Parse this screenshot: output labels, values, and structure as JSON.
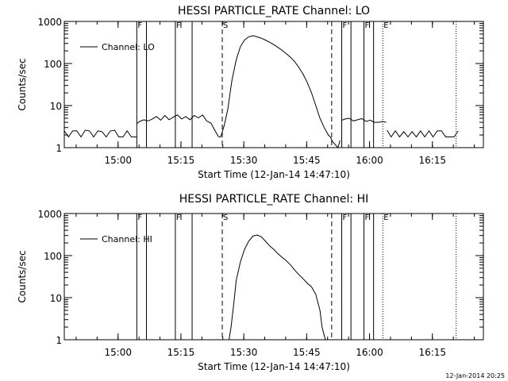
{
  "footer_text": "12-Jan-2014 20:25",
  "chart_data": [
    {
      "type": "line",
      "title": "HESSI PARTICLE_RATE Channel: LO",
      "xlabel": "Start Time (12-Jan-14 14:47:10)",
      "ylabel": "Counts/sec",
      "x_unit": "minutes since start",
      "xlim": [
        0,
        100
      ],
      "ylim": [
        1,
        1000
      ],
      "y_scale": "log",
      "x_ticks": [
        {
          "t": 12.83,
          "label": "15:00"
        },
        {
          "t": 27.83,
          "label": "15:15"
        },
        {
          "t": 42.83,
          "label": "15:30"
        },
        {
          "t": 57.83,
          "label": "15:45"
        },
        {
          "t": 72.83,
          "label": "16:00"
        },
        {
          "t": 87.83,
          "label": "16:15"
        }
      ],
      "y_ticks": [
        {
          "v": 1,
          "label": "1"
        },
        {
          "v": 10,
          "label": "10"
        },
        {
          "v": 100,
          "label": "100"
        },
        {
          "v": 1000,
          "label": "1000"
        }
      ],
      "legend": {
        "label": "Channel: LO",
        "placement": "top-left"
      },
      "markers": [
        {
          "t": 17.3,
          "style": "solid",
          "label": "F"
        },
        {
          "t": 19.6,
          "style": "solid",
          "label": ""
        },
        {
          "t": 26.5,
          "style": "solid",
          "label": "F"
        },
        {
          "t": 30.5,
          "style": "solid",
          "label": ""
        },
        {
          "t": 37.7,
          "style": "dashed",
          "label": "S"
        },
        {
          "t": 63.8,
          "style": "dashed",
          "label": ""
        },
        {
          "t": 66.2,
          "style": "solid",
          "label": "F"
        },
        {
          "t": 68.4,
          "style": "solid",
          "label": ""
        },
        {
          "t": 71.5,
          "style": "solid",
          "label": "F"
        },
        {
          "t": 73.8,
          "style": "solid",
          "label": ""
        },
        {
          "t": 76.0,
          "style": "dotted",
          "label": "E"
        },
        {
          "t": 93.5,
          "style": "dotted",
          "label": ""
        }
      ],
      "segments": [
        {
          "x": [
            0,
            1,
            2,
            3,
            4,
            5,
            6,
            7,
            8,
            9,
            10,
            11,
            12,
            13,
            14,
            15,
            16,
            17.2
          ],
          "y": [
            2.5,
            1.8,
            2.5,
            2.5,
            1.8,
            2.6,
            2.5,
            1.8,
            2.5,
            2.4,
            1.8,
            2.5,
            2.6,
            1.8,
            1.8,
            2.5,
            1.8,
            1.8
          ]
        },
        {
          "x": [
            17.4,
            18,
            19,
            20,
            21,
            22,
            23,
            24,
            25,
            26,
            27,
            28,
            29,
            30,
            31,
            32,
            33,
            34,
            35,
            36,
            36.8
          ],
          "y": [
            3.8,
            4.2,
            4.6,
            4.3,
            4.8,
            5.5,
            4.5,
            5.8,
            4.6,
            5.3,
            6.0,
            4.8,
            5.5,
            4.6,
            5.8,
            5.1,
            6.0,
            4.3,
            3.8,
            2.5,
            1.8
          ]
        },
        {
          "x": [
            36.9,
            37.3,
            37.6
          ],
          "y": [
            1.8,
            1.8,
            2.2
          ]
        },
        {
          "x": [
            37.6,
            38.2,
            39,
            40,
            41,
            42,
            43,
            44,
            45,
            46,
            47,
            48,
            49,
            50,
            51,
            52,
            53,
            54,
            55,
            56,
            57,
            58,
            59,
            60,
            61,
            62,
            63,
            63.5,
            64,
            65.3
          ],
          "y": [
            2.2,
            3.5,
            8,
            40,
            120,
            250,
            360,
            430,
            460,
            430,
            400,
            360,
            320,
            280,
            240,
            205,
            170,
            140,
            110,
            80,
            55,
            35,
            20,
            10,
            5,
            3,
            2,
            1.8,
            1.4,
            1.0
          ]
        },
        {
          "x": [
            65.3,
            65.8
          ],
          "y": [
            1.0,
            1.5
          ]
        },
        {
          "x": [
            66.3,
            67,
            68,
            69,
            70,
            71,
            72,
            73,
            74,
            75,
            76,
            76.8
          ],
          "y": [
            4.5,
            4.8,
            5.0,
            4.3,
            4.6,
            4.9,
            4.2,
            4.5,
            4.0,
            4.0,
            4.2,
            4.0
          ]
        },
        {
          "x": [
            77,
            78,
            79,
            80,
            81,
            82,
            83,
            84,
            85,
            86,
            87,
            88,
            89,
            90,
            91,
            92,
            93,
            94
          ],
          "y": [
            2.6,
            1.8,
            2.5,
            1.8,
            2.4,
            1.8,
            2.4,
            1.8,
            2.5,
            1.8,
            2.5,
            1.8,
            2.5,
            2.5,
            1.8,
            1.8,
            1.8,
            2.5
          ]
        }
      ]
    },
    {
      "type": "line",
      "title": "HESSI PARTICLE_RATE Channel: HI",
      "xlabel": "Start Time (12-Jan-14 14:47:10)",
      "ylabel": "Counts/sec",
      "x_unit": "minutes since start",
      "xlim": [
        0,
        100
      ],
      "ylim": [
        1,
        1000
      ],
      "y_scale": "log",
      "x_ticks": [
        {
          "t": 12.83,
          "label": "15:00"
        },
        {
          "t": 27.83,
          "label": "15:15"
        },
        {
          "t": 42.83,
          "label": "15:30"
        },
        {
          "t": 57.83,
          "label": "15:45"
        },
        {
          "t": 72.83,
          "label": "16:00"
        },
        {
          "t": 87.83,
          "label": "16:15"
        }
      ],
      "y_ticks": [
        {
          "v": 1,
          "label": "1"
        },
        {
          "v": 10,
          "label": "10"
        },
        {
          "v": 100,
          "label": "100"
        },
        {
          "v": 1000,
          "label": "1000"
        }
      ],
      "legend": {
        "label": "Channel: HI",
        "placement": "top-left"
      },
      "markers": [
        {
          "t": 17.3,
          "style": "solid",
          "label": "F"
        },
        {
          "t": 19.6,
          "style": "solid",
          "label": ""
        },
        {
          "t": 26.5,
          "style": "solid",
          "label": "F"
        },
        {
          "t": 30.5,
          "style": "solid",
          "label": ""
        },
        {
          "t": 37.7,
          "style": "dashed",
          "label": "S"
        },
        {
          "t": 63.8,
          "style": "dashed",
          "label": ""
        },
        {
          "t": 66.2,
          "style": "solid",
          "label": "F"
        },
        {
          "t": 68.4,
          "style": "solid",
          "label": ""
        },
        {
          "t": 71.5,
          "style": "solid",
          "label": "F"
        },
        {
          "t": 73.8,
          "style": "solid",
          "label": ""
        },
        {
          "t": 76.0,
          "style": "dotted",
          "label": "E"
        },
        {
          "t": 93.5,
          "style": "dotted",
          "label": ""
        }
      ],
      "segments": [
        {
          "x": [
            39.3,
            39.8,
            40.5,
            41,
            42,
            43,
            44,
            45,
            46,
            47,
            48,
            49,
            50,
            51,
            52,
            53,
            54,
            55,
            56,
            57,
            58,
            59,
            60,
            61,
            61.5,
            62.3
          ],
          "y": [
            1.0,
            2,
            8,
            25,
            70,
            140,
            220,
            290,
            310,
            280,
            220,
            170,
            140,
            110,
            90,
            75,
            60,
            45,
            35,
            28,
            22,
            18,
            12,
            5,
            2,
            1.0
          ]
        }
      ]
    }
  ]
}
